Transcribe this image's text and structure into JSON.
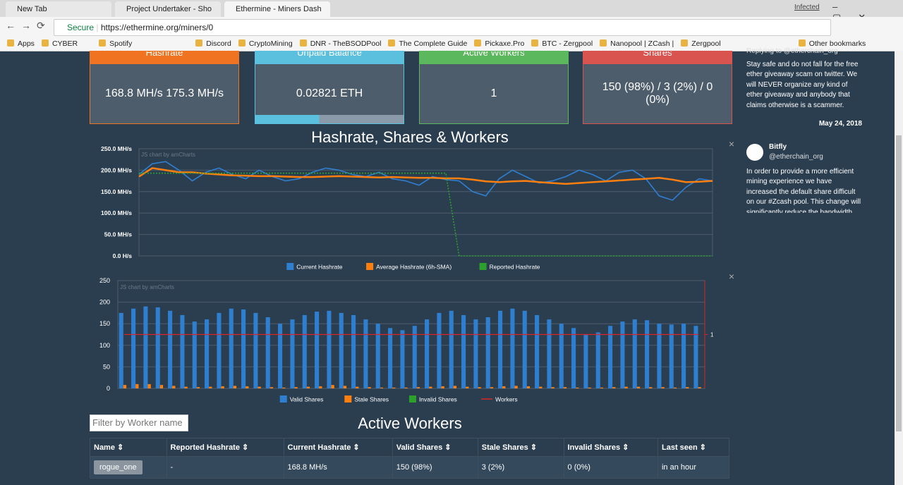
{
  "browser": {
    "tabs": [
      "New Tab",
      "Project Undertaker - Sho",
      "Ethermine - Miners Dash"
    ],
    "profile": "Infected",
    "secure": "Secure",
    "url": "https://ethermine.org/miners/0",
    "bookmarks": [
      "Apps",
      "CYBER",
      "Spotify",
      "Discord",
      "CryptoMining",
      "DNR - TheBSODPool",
      "The Complete Guide",
      "Pickaxe.Pro",
      "BTC - Zergpool",
      "Nanopool | ZCash |",
      "Zergpool"
    ],
    "other_bookmarks": "Other bookmarks"
  },
  "cards": [
    {
      "title": "Hashrate",
      "value": "168.8 MH/s 175.3 MH/s",
      "color": "#ef7321"
    },
    {
      "title": "Unpaid Balance",
      "value": "0.02821 ETH",
      "color": "#5bc0de"
    },
    {
      "title": "Active Workers",
      "value": "1",
      "color": "#5cb85c"
    },
    {
      "title": "Shares",
      "value": "150 (98%) / 3 (2%) / 0 (0%)",
      "color": "#d9534f"
    }
  ],
  "hashrate_chart": {
    "type": "line",
    "title": "Hashrate, Shares & Workers",
    "watermark": "JS chart by amCharts",
    "ylim": [
      0,
      250
    ],
    "yticks": [
      {
        "value": 0,
        "label": "0.0 H/s"
      },
      {
        "value": 50,
        "label": "50.0 MH/s"
      },
      {
        "value": 100,
        "label": "100.0 MH/s"
      },
      {
        "value": 150,
        "label": "150.0 MH/s"
      },
      {
        "value": 200,
        "label": "200.0 MH/s"
      },
      {
        "value": 250,
        "label": "250.0 MH/s"
      }
    ],
    "grid": true,
    "series": [
      {
        "name": "Current Hashrate",
        "color": "#2f7fd0",
        "values": [
          190,
          215,
          220,
          200,
          175,
          195,
          205,
          190,
          180,
          200,
          185,
          175,
          180,
          195,
          205,
          200,
          190,
          185,
          195,
          180,
          175,
          165,
          185,
          178,
          175,
          150,
          140,
          180,
          200,
          185,
          170,
          175,
          185,
          200,
          190,
          175,
          195,
          200,
          180,
          140,
          130,
          160,
          180,
          175
        ]
      },
      {
        "name": "Average Hashrate (6h-SMA)",
        "color": "#ff7f0e",
        "values": [
          185,
          205,
          200,
          195,
          195,
          192,
          190,
          188,
          187,
          186,
          186,
          185,
          184,
          184,
          185,
          186,
          185,
          184,
          183,
          184,
          183,
          182,
          182,
          181,
          181,
          178,
          174,
          172,
          174,
          175,
          172,
          170,
          168,
          170,
          172,
          174,
          176,
          178,
          180,
          182,
          178,
          172,
          173,
          175
        ]
      },
      {
        "name": "Reported Hashrate",
        "color": "#2ca02c",
        "values": [
          193,
          193,
          193,
          193,
          193,
          193,
          193,
          193,
          193,
          193,
          193,
          193,
          193,
          193,
          193,
          193,
          193,
          193,
          193,
          193,
          193,
          193,
          193,
          193,
          0,
          0,
          0,
          0,
          0,
          0,
          0,
          0,
          0,
          0,
          0,
          0,
          0,
          0,
          0,
          0,
          0,
          0,
          0,
          0
        ]
      }
    ]
  },
  "shares_chart": {
    "type": "bar",
    "watermark": "JS chart by amCharts",
    "ylim": [
      0,
      250
    ],
    "yticks": [
      0,
      50,
      100,
      150,
      200,
      250
    ],
    "y2lim": [
      0,
      2
    ],
    "y2ticks": [
      1
    ],
    "grid": true,
    "series": [
      {
        "name": "Valid Shares",
        "color": "#2f7fd0",
        "values": [
          175,
          185,
          190,
          188,
          180,
          170,
          155,
          160,
          175,
          185,
          183,
          175,
          165,
          150,
          160,
          170,
          178,
          180,
          175,
          170,
          160,
          150,
          140,
          135,
          145,
          160,
          175,
          180,
          170,
          160,
          165,
          180,
          185,
          180,
          170,
          160,
          150,
          140,
          125,
          130,
          145,
          155,
          160,
          158,
          150,
          148,
          150,
          145
        ]
      },
      {
        "name": "Stale Shares",
        "color": "#ff7f0e",
        "values": [
          8,
          10,
          10,
          8,
          6,
          4,
          3,
          4,
          5,
          6,
          5,
          4,
          3,
          2,
          3,
          4,
          5,
          8,
          6,
          4,
          3,
          2,
          2,
          2,
          3,
          4,
          5,
          6,
          4,
          3,
          3,
          5,
          6,
          5,
          4,
          3,
          3,
          2,
          2,
          2,
          3,
          4,
          4,
          3,
          3,
          2,
          3,
          3
        ]
      },
      {
        "name": "Invalid Shares",
        "color": "#2ca02c",
        "values": [
          0,
          0,
          0,
          0,
          0,
          0,
          0,
          0,
          0,
          0,
          0,
          0,
          0,
          0,
          0,
          0,
          0,
          0,
          0,
          0,
          0,
          0,
          0,
          0,
          0,
          0,
          0,
          0,
          0,
          0,
          0,
          0,
          0,
          0,
          0,
          0,
          0,
          0,
          0,
          0,
          0,
          0,
          0,
          0,
          0,
          0,
          0,
          0
        ]
      },
      {
        "name": "Workers",
        "color": "#d62728",
        "axis": "y2",
        "values": [
          1,
          1,
          1,
          1,
          1,
          1,
          1,
          1,
          1,
          1,
          1,
          1,
          1,
          1,
          1,
          1,
          1,
          1,
          1,
          1,
          1,
          1,
          1,
          1,
          1,
          1,
          1,
          1,
          1,
          1,
          1,
          1,
          1,
          1,
          1,
          1,
          1,
          1,
          1,
          1,
          1,
          1,
          1,
          1,
          1,
          1,
          1,
          1
        ]
      }
    ]
  },
  "workers": {
    "filter_placeholder": "Filter by Worker name",
    "title": "Active Workers",
    "columns": [
      "Name",
      "Reported Hashrate",
      "Current Hashrate",
      "Valid Shares",
      "Stale Shares",
      "Invalid Shares",
      "Last seen"
    ],
    "rows": [
      [
        "rogue_one",
        "-",
        "168.8 MH/s",
        "150 (98%)",
        "3 (2%)",
        "0 (0%)",
        "in an hour"
      ]
    ]
  },
  "tweets": [
    {
      "reply": "Replying to @etherchain_org",
      "text": "Stay safe and do not fall for the free ether giveaway scam on twitter. We will NEVER organize any kind of ether giveaway and anybody that claims otherwise is a scammer.",
      "date": "May 24, 2018"
    },
    {
      "author": "Bitfly",
      "handle": "@etherchain_org",
      "text": "In order to provide a more efficient mining experience we have increased the default share difficult on our #Zcash pool.  This change will significantly reduce the bandwidth"
    }
  ]
}
